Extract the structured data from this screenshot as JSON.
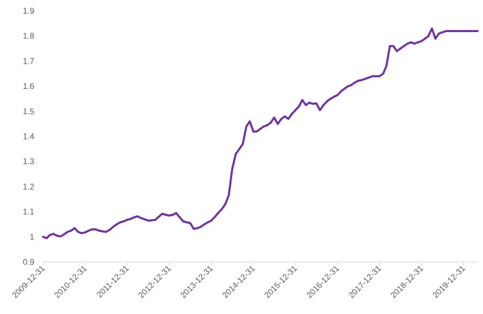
{
  "chart_data": {
    "type": "line",
    "title": "",
    "xlabel": "",
    "ylabel": "",
    "ylim": [
      0.9,
      1.9
    ],
    "yticks": [
      "0.9",
      "1",
      "1.1",
      "1.2",
      "1.3",
      "1.4",
      "1.5",
      "1.6",
      "1.7",
      "1.8",
      "1.9"
    ],
    "xticks": [
      "2009-12-31",
      "2010-12-31",
      "2011-12-31",
      "2012-12-31",
      "2013-12-31",
      "2014-12-31",
      "2015-12-31",
      "2016-12-31",
      "2017-12-31",
      "2018-12-31",
      "2019-12-31"
    ],
    "xlim": [
      "2009-12-31",
      "2020-04-30"
    ],
    "grid": false,
    "legend": "none",
    "line_color": "#7030a0",
    "series": [
      {
        "x": [
          "2009-12-31",
          "2010-01-31",
          "2010-02-28",
          "2010-03-31",
          "2010-04-30",
          "2010-05-31",
          "2010-06-30",
          "2010-07-31",
          "2010-08-31",
          "2010-09-30",
          "2010-10-31",
          "2010-11-30",
          "2010-12-31",
          "2011-01-31",
          "2011-02-28",
          "2011-03-31",
          "2011-04-30",
          "2011-05-31",
          "2011-06-30",
          "2011-07-31",
          "2011-08-31",
          "2011-09-30",
          "2011-10-31",
          "2011-11-30",
          "2011-12-31",
          "2012-01-31",
          "2012-02-29",
          "2012-03-31",
          "2012-04-30",
          "2012-05-31",
          "2012-06-30",
          "2012-07-31",
          "2012-08-31",
          "2012-09-30",
          "2012-10-31",
          "2012-11-30",
          "2012-12-31",
          "2013-01-31",
          "2013-02-28",
          "2013-03-31",
          "2013-04-30",
          "2013-05-31",
          "2013-06-30",
          "2013-07-31",
          "2013-08-31",
          "2013-09-30",
          "2013-10-31",
          "2013-11-30",
          "2013-12-31",
          "2014-01-31",
          "2014-02-28",
          "2014-03-31",
          "2014-04-30",
          "2014-05-31",
          "2014-06-30",
          "2014-07-31",
          "2014-08-31",
          "2014-09-30",
          "2014-10-31",
          "2014-11-30",
          "2014-12-31",
          "2015-01-31",
          "2015-02-28",
          "2015-03-31",
          "2015-04-30",
          "2015-05-31",
          "2015-06-30",
          "2015-07-31",
          "2015-08-31",
          "2015-09-30",
          "2015-10-31",
          "2015-11-30",
          "2015-12-31",
          "2016-01-31",
          "2016-02-29",
          "2016-03-31",
          "2016-04-30",
          "2016-05-31",
          "2016-06-30",
          "2016-07-31",
          "2016-08-31",
          "2016-09-30",
          "2016-10-31",
          "2016-11-30",
          "2016-12-31",
          "2017-01-31",
          "2017-02-28",
          "2017-03-31",
          "2017-04-30",
          "2017-05-31",
          "2017-06-30",
          "2017-07-31",
          "2017-08-31",
          "2017-09-30",
          "2017-10-31",
          "2017-11-30",
          "2017-12-31",
          "2018-01-31",
          "2018-02-28",
          "2018-03-31",
          "2018-04-30",
          "2018-05-31",
          "2018-06-30",
          "2018-07-31",
          "2018-08-31",
          "2018-09-30",
          "2018-10-31",
          "2018-11-30",
          "2018-12-31",
          "2019-01-31",
          "2019-02-28",
          "2019-03-31",
          "2019-04-30",
          "2019-05-31",
          "2019-06-30",
          "2019-07-31",
          "2019-08-31",
          "2019-09-30",
          "2019-10-31",
          "2019-11-30",
          "2019-12-31",
          "2020-01-31",
          "2020-02-29",
          "2020-03-31",
          "2020-04-30"
        ],
        "values": [
          1.0,
          0.995,
          1.008,
          1.012,
          1.005,
          1.002,
          1.01,
          1.02,
          1.025,
          1.035,
          1.02,
          1.015,
          1.018,
          1.025,
          1.03,
          1.03,
          1.025,
          1.022,
          1.02,
          1.028,
          1.04,
          1.05,
          1.058,
          1.062,
          1.068,
          1.072,
          1.078,
          1.082,
          1.075,
          1.07,
          1.065,
          1.066,
          1.068,
          1.08,
          1.092,
          1.088,
          1.085,
          1.088,
          1.095,
          1.078,
          1.062,
          1.058,
          1.055,
          1.032,
          1.035,
          1.04,
          1.05,
          1.058,
          1.065,
          1.08,
          1.095,
          1.11,
          1.13,
          1.165,
          1.27,
          1.33,
          1.35,
          1.37,
          1.44,
          1.46,
          1.42,
          1.42,
          1.43,
          1.44,
          1.445,
          1.455,
          1.475,
          1.45,
          1.47,
          1.48,
          1.47,
          1.49,
          1.505,
          1.52,
          1.545,
          1.525,
          1.535,
          1.53,
          1.532,
          1.505,
          1.525,
          1.54,
          1.55,
          1.558,
          1.565,
          1.58,
          1.59,
          1.6,
          1.605,
          1.615,
          1.622,
          1.625,
          1.63,
          1.635,
          1.64,
          1.64,
          1.64,
          1.65,
          1.68,
          1.76,
          1.76,
          1.74,
          1.75,
          1.76,
          1.77,
          1.775,
          1.77,
          1.775,
          1.78,
          1.79,
          1.8,
          1.83,
          1.79,
          1.81,
          1.815,
          1.82,
          1.82,
          1.82,
          1.82,
          1.82,
          1.82,
          1.82,
          1.82,
          1.82,
          1.82
        ]
      }
    ]
  }
}
